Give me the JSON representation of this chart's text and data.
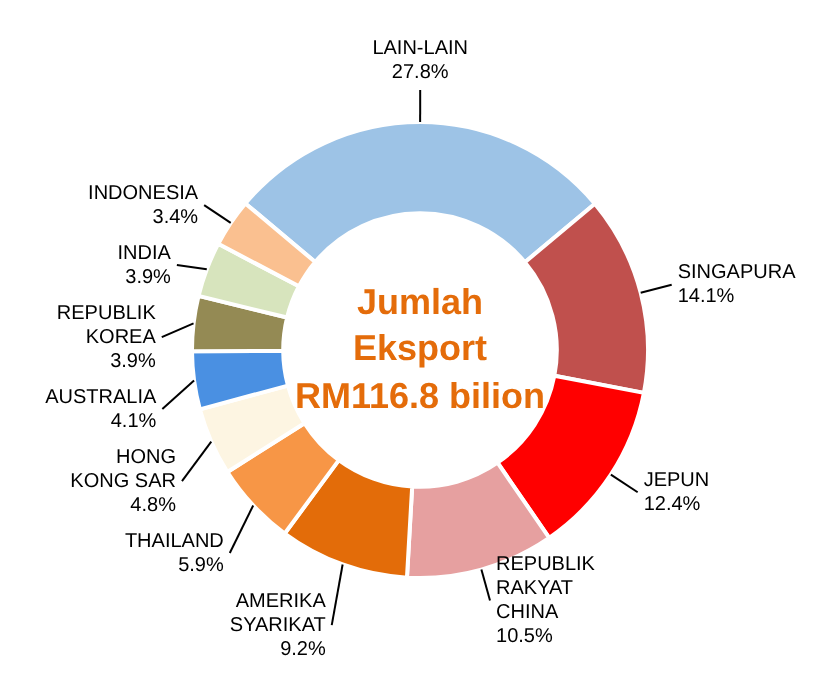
{
  "chart_data": {
    "type": "donut",
    "title": "Jumlah\nEksport\nRM116.8 bilion",
    "categories": [
      "LAIN-LAIN",
      "SINGAPURA",
      "JEPUN",
      "REPUBLIK RAKYAT CHINA",
      "AMERIKA SYARIKAT",
      "THAILAND",
      "HONG KONG SAR",
      "AUSTRALIA",
      "REPUBLIK KOREA",
      "INDIA",
      "INDONESIA"
    ],
    "values": [
      27.8,
      14.1,
      12.4,
      10.5,
      9.2,
      5.9,
      4.8,
      4.1,
      3.9,
      3.9,
      3.4
    ],
    "value_labels": [
      "27.8%",
      "14.1%",
      "12.4%",
      "10.5%",
      "9.2%",
      "5.9%",
      "4.8%",
      "4.1%",
      "3.9%",
      "3.9%",
      "3.4%"
    ],
    "colors": [
      "#9dc3e6",
      "#c0504d",
      "#ff0000",
      "#e6a0a0",
      "#e36c09",
      "#f79646",
      "#fdf5e2",
      "#4a90e2",
      "#948a54",
      "#d7e4bd",
      "#fac090"
    ],
    "legend": false
  }
}
